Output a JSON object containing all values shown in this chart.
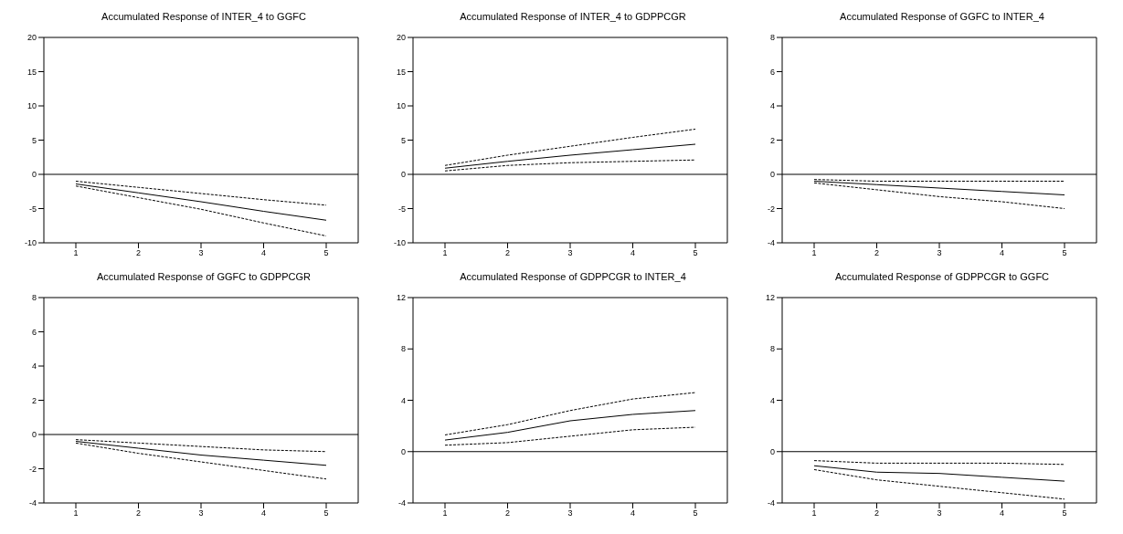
{
  "chart_data": [
    {
      "type": "line",
      "title": "Accumulated Response of INTER_4 to GGFC",
      "categories": [
        "1",
        "2",
        "3",
        "4",
        "5"
      ],
      "ylim": [
        -10,
        20
      ],
      "yticks": [
        -10,
        -5,
        0,
        5,
        10,
        15,
        20
      ],
      "grid": false,
      "legend": false,
      "marker": "none",
      "ref_lines": [
        {
          "axis": "y",
          "value": 0,
          "color": "#000000"
        }
      ],
      "series": [
        {
          "color": "#000000",
          "line_style": "solid",
          "values": [
            -1.4,
            -2.7,
            -4.0,
            -5.4,
            -6.7
          ]
        },
        {
          "color": "#000000",
          "line_style": "dashed",
          "values": [
            -1.0,
            -1.9,
            -2.8,
            -3.7,
            -4.5
          ]
        },
        {
          "color": "#000000",
          "line_style": "dashed",
          "values": [
            -1.7,
            -3.4,
            -5.1,
            -7.1,
            -9.0
          ]
        }
      ]
    },
    {
      "type": "line",
      "title": "Accumulated Response of INTER_4 to GDPPCGR",
      "categories": [
        "1",
        "2",
        "3",
        "4",
        "5"
      ],
      "ylim": [
        -10,
        20
      ],
      "yticks": [
        -10,
        -5,
        0,
        5,
        10,
        15,
        20
      ],
      "grid": false,
      "legend": false,
      "marker": "none",
      "ref_lines": [
        {
          "axis": "y",
          "value": 0,
          "color": "#000000"
        }
      ],
      "series": [
        {
          "color": "#000000",
          "line_style": "solid",
          "values": [
            0.9,
            1.9,
            2.8,
            3.6,
            4.4
          ]
        },
        {
          "color": "#000000",
          "line_style": "dashed",
          "values": [
            1.3,
            2.8,
            4.1,
            5.4,
            6.6
          ]
        },
        {
          "color": "#000000",
          "line_style": "dashed",
          "values": [
            0.5,
            1.3,
            1.7,
            1.9,
            2.1
          ]
        }
      ]
    },
    {
      "type": "line",
      "title": "Accumulated Response of GGFC to INTER_4",
      "categories": [
        "1",
        "2",
        "3",
        "4",
        "5"
      ],
      "ylim": [
        -4,
        8
      ],
      "yticks": [
        -4,
        -2,
        0,
        2,
        4,
        6,
        8
      ],
      "grid": false,
      "legend": false,
      "marker": "none",
      "ref_lines": [
        {
          "axis": "y",
          "value": 0,
          "color": "#000000"
        }
      ],
      "series": [
        {
          "color": "#000000",
          "line_style": "solid",
          "values": [
            -0.4,
            -0.6,
            -0.8,
            -1.0,
            -1.2
          ]
        },
        {
          "color": "#000000",
          "line_style": "dashed",
          "values": [
            -0.3,
            -0.4,
            -0.4,
            -0.4,
            -0.4
          ]
        },
        {
          "color": "#000000",
          "line_style": "dashed",
          "values": [
            -0.5,
            -0.9,
            -1.3,
            -1.6,
            -2.0
          ]
        }
      ]
    },
    {
      "type": "line",
      "title": "Accumulated Response of GGFC to GDPPCGR",
      "categories": [
        "1",
        "2",
        "3",
        "4",
        "5"
      ],
      "ylim": [
        -4,
        8
      ],
      "yticks": [
        -4,
        -2,
        0,
        2,
        4,
        6,
        8
      ],
      "grid": false,
      "legend": false,
      "marker": "none",
      "ref_lines": [
        {
          "axis": "y",
          "value": 0,
          "color": "#000000"
        }
      ],
      "series": [
        {
          "color": "#000000",
          "line_style": "solid",
          "values": [
            -0.4,
            -0.8,
            -1.2,
            -1.5,
            -1.8
          ]
        },
        {
          "color": "#000000",
          "line_style": "dashed",
          "values": [
            -0.3,
            -0.5,
            -0.7,
            -0.9,
            -1.0
          ]
        },
        {
          "color": "#000000",
          "line_style": "dashed",
          "values": [
            -0.5,
            -1.1,
            -1.6,
            -2.1,
            -2.6
          ]
        }
      ]
    },
    {
      "type": "line",
      "title": "Accumulated Response of GDPPCGR to INTER_4",
      "categories": [
        "1",
        "2",
        "3",
        "4",
        "5"
      ],
      "ylim": [
        -4,
        12
      ],
      "yticks": [
        -4,
        0,
        4,
        8,
        12
      ],
      "grid": false,
      "legend": false,
      "marker": "none",
      "ref_lines": [
        {
          "axis": "y",
          "value": 0,
          "color": "#000000"
        }
      ],
      "series": [
        {
          "color": "#000000",
          "line_style": "solid",
          "values": [
            0.9,
            1.5,
            2.4,
            2.9,
            3.2
          ]
        },
        {
          "color": "#000000",
          "line_style": "dashed",
          "values": [
            1.3,
            2.1,
            3.2,
            4.1,
            4.6
          ]
        },
        {
          "color": "#000000",
          "line_style": "dashed",
          "values": [
            0.5,
            0.7,
            1.2,
            1.7,
            1.9
          ]
        }
      ]
    },
    {
      "type": "line",
      "title": "Accumulated Response of GDPPCGR to GGFC",
      "categories": [
        "1",
        "2",
        "3",
        "4",
        "5"
      ],
      "ylim": [
        -4,
        12
      ],
      "yticks": [
        -4,
        0,
        4,
        8,
        12
      ],
      "grid": false,
      "legend": false,
      "marker": "none",
      "ref_lines": [
        {
          "axis": "y",
          "value": 0,
          "color": "#000000"
        }
      ],
      "series": [
        {
          "color": "#000000",
          "line_style": "solid",
          "values": [
            -1.1,
            -1.6,
            -1.7,
            -2.0,
            -2.3
          ]
        },
        {
          "color": "#000000",
          "line_style": "dashed",
          "values": [
            -0.7,
            -0.9,
            -0.9,
            -0.9,
            -1.0
          ]
        },
        {
          "color": "#000000",
          "line_style": "dashed",
          "values": [
            -1.4,
            -2.2,
            -2.7,
            -3.2,
            -3.7
          ]
        }
      ]
    }
  ]
}
